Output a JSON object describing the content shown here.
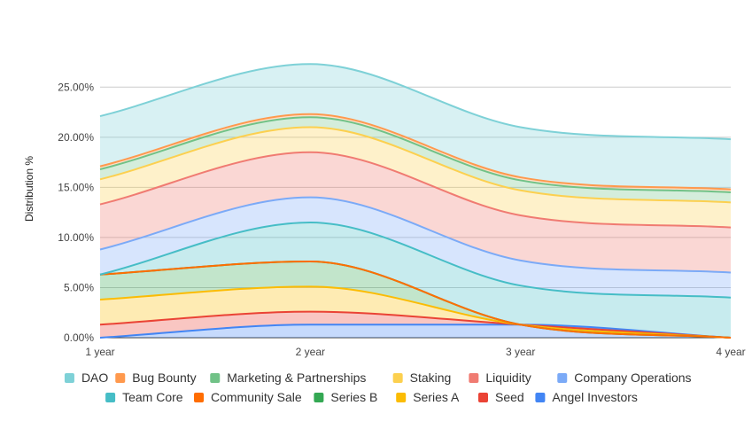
{
  "chart_data": {
    "type": "area",
    "stacked": true,
    "ylabel": "Distribution %",
    "xlabel": "",
    "ylim": [
      0,
      27.5
    ],
    "grid": true,
    "legend_position": "bottom",
    "x": [
      "1 year",
      "2 year",
      "3 year",
      "4 year"
    ],
    "y_ticks": [
      "0.00%",
      "5.00%",
      "10.00%",
      "15.00%",
      "20.00%",
      "25.00%"
    ],
    "series": [
      {
        "name": "Angel Investors",
        "color": "#4285f4",
        "values": [
          0.0,
          1.3,
          1.3,
          0.0
        ]
      },
      {
        "name": "Seed",
        "color": "#ea4335",
        "values": [
          1.3,
          1.3,
          0.0,
          0.0
        ]
      },
      {
        "name": "Series A",
        "color": "#fbbc04",
        "values": [
          2.5,
          2.5,
          0.0,
          0.0
        ]
      },
      {
        "name": "Series B",
        "color": "#34a853",
        "values": [
          2.5,
          2.5,
          0.0,
          0.0
        ]
      },
      {
        "name": "Community Sale",
        "color": "#ff6d01",
        "values": [
          0.0,
          0.0,
          0.0,
          0.0
        ]
      },
      {
        "name": "Team Core",
        "color": "#46bdc6",
        "values": [
          0.0,
          3.9,
          3.9,
          4.0
        ]
      },
      {
        "name": "Company Operations",
        "color": "#7baaf7",
        "values": [
          2.5,
          2.5,
          2.5,
          2.5
        ]
      },
      {
        "name": "Liquidity",
        "color": "#f07b72",
        "values": [
          4.5,
          4.5,
          4.5,
          4.5
        ]
      },
      {
        "name": "Staking",
        "color": "#fcd04f",
        "values": [
          2.5,
          2.5,
          2.5,
          2.5
        ]
      },
      {
        "name": "Marketing & Partnerships",
        "color": "#71c287",
        "values": [
          1.0,
          1.0,
          1.0,
          1.0
        ]
      },
      {
        "name": "Bug Bounty",
        "color": "#ff994d",
        "values": [
          0.3,
          0.3,
          0.3,
          0.3
        ]
      },
      {
        "name": "DAO",
        "color": "#7ed1d7",
        "values": [
          5.0,
          5.0,
          5.0,
          5.0
        ]
      }
    ],
    "legend_rows": [
      [
        "DAO",
        "Bug Bounty",
        "Marketing & Partnerships",
        "Staking",
        "Liquidity",
        "Company Operations"
      ],
      [
        "Team Core",
        "Community Sale",
        "Series B",
        "Series A",
        "Seed",
        "Angel Investors"
      ]
    ]
  }
}
